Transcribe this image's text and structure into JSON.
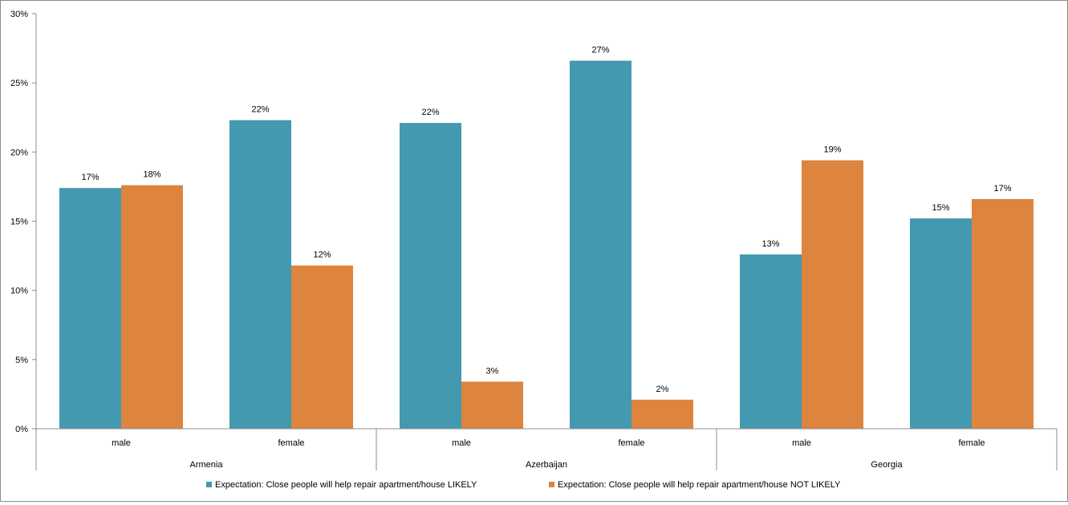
{
  "chart_data": {
    "type": "bar",
    "groups": [
      {
        "name": "Armenia",
        "categories": [
          "male",
          "female"
        ]
      },
      {
        "name": "Azerbaijan",
        "categories": [
          "male",
          "female"
        ]
      },
      {
        "name": "Georgia",
        "categories": [
          "male",
          "female"
        ]
      }
    ],
    "series": [
      {
        "name": "Expectation: Close people will help repair apartment/house LIKELY",
        "color": "#4399b0",
        "values": [
          17.4,
          22.3,
          22.1,
          26.6,
          12.6,
          15.2
        ],
        "labels": [
          "17%",
          "22%",
          "22%",
          "27%",
          "13%",
          "15%"
        ]
      },
      {
        "name": "Expectation: Close people will help repair apartment/house NOT LIKELY",
        "color": "#dd843e",
        "values": [
          17.6,
          11.8,
          3.4,
          2.1,
          19.4,
          16.6
        ],
        "labels": [
          "18%",
          "12%",
          "3%",
          "2%",
          "19%",
          "17%"
        ]
      }
    ],
    "ylim": [
      0,
      30
    ],
    "yticks": [
      0,
      5,
      10,
      15,
      20,
      25,
      30
    ],
    "ytick_labels": [
      "0%",
      "5%",
      "10%",
      "15%",
      "20%",
      "25%",
      "30%"
    ],
    "legend_position": "bottom",
    "grid": false
  }
}
